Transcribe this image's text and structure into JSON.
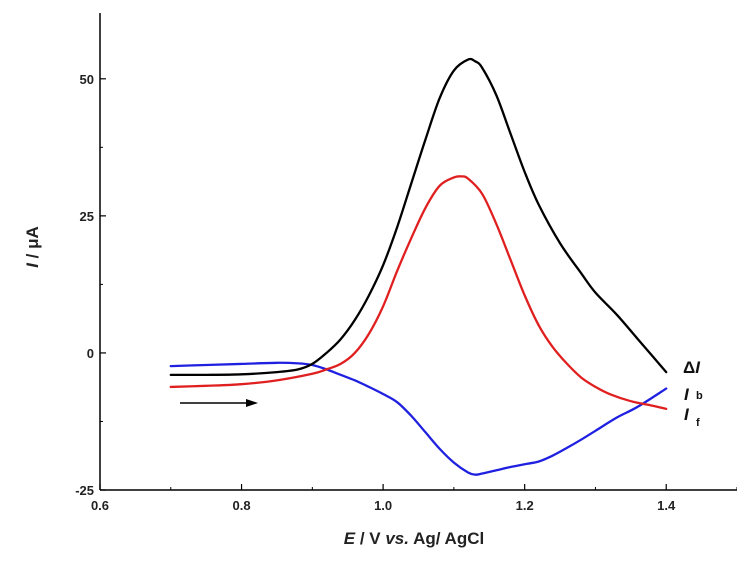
{
  "chart_data": {
    "type": "line",
    "xlabel": {
      "italic": "E",
      "rest1": " / V ",
      "italic2": "vs.",
      "rest2": " Ag/ AgCl"
    },
    "ylabel": {
      "italic": "I",
      "rest": " / μA"
    },
    "xlim": [
      0.6,
      1.5
    ],
    "ylim": [
      -25,
      62
    ],
    "x_ticks": [
      "0.6",
      "0.8",
      "1.0",
      "1.2",
      "1.4"
    ],
    "y_ticks": [
      "-25",
      "0",
      "25",
      "50"
    ],
    "grid": false,
    "scan_direction": "forward (increasing E)",
    "series": [
      {
        "label": {
          "symbol": "Δ",
          "main": "I",
          "sub": ""
        },
        "color": "#000000",
        "x": [
          0.7,
          0.75,
          0.8,
          0.85,
          0.88,
          0.9,
          0.92,
          0.94,
          0.96,
          0.98,
          1.0,
          1.02,
          1.04,
          1.06,
          1.08,
          1.1,
          1.12,
          1.13,
          1.14,
          1.16,
          1.18,
          1.2,
          1.22,
          1.25,
          1.28,
          1.3,
          1.33,
          1.36,
          1.38,
          1.4
        ],
        "y": [
          -4.0,
          -4.0,
          -3.9,
          -3.5,
          -3.0,
          -2.0,
          0.0,
          2.5,
          6.0,
          10.5,
          16.0,
          23.0,
          31.0,
          39.0,
          46.5,
          51.5,
          53.5,
          53.2,
          52.0,
          47.0,
          40.0,
          33.0,
          27.0,
          20.0,
          14.5,
          11.0,
          7.0,
          2.5,
          -0.5,
          -3.5
        ]
      },
      {
        "label": {
          "symbol": "",
          "main": "I",
          "sub": "b"
        },
        "color": "#e02020",
        "x": [
          0.7,
          0.75,
          0.8,
          0.85,
          0.9,
          0.92,
          0.94,
          0.96,
          0.98,
          1.0,
          1.02,
          1.04,
          1.06,
          1.08,
          1.1,
          1.11,
          1.12,
          1.14,
          1.16,
          1.18,
          1.2,
          1.22,
          1.24,
          1.26,
          1.28,
          1.3,
          1.32,
          1.35,
          1.38,
          1.4
        ],
        "y": [
          -6.2,
          -6.0,
          -5.7,
          -5.0,
          -3.8,
          -3.0,
          -2.0,
          0.0,
          3.5,
          8.5,
          15.0,
          21.0,
          26.5,
          30.5,
          32.0,
          32.2,
          31.8,
          29.0,
          23.5,
          17.0,
          10.5,
          5.0,
          1.0,
          -2.0,
          -4.5,
          -6.2,
          -7.5,
          -8.8,
          -9.6,
          -10.2
        ]
      },
      {
        "label": {
          "symbol": "",
          "main": "I",
          "sub": "f"
        },
        "color": "#2020e0",
        "x": [
          0.7,
          0.75,
          0.8,
          0.85,
          0.88,
          0.9,
          0.92,
          0.94,
          0.96,
          0.98,
          1.0,
          1.02,
          1.04,
          1.06,
          1.08,
          1.1,
          1.12,
          1.13,
          1.14,
          1.16,
          1.18,
          1.2,
          1.22,
          1.24,
          1.26,
          1.28,
          1.3,
          1.33,
          1.36,
          1.4
        ],
        "y": [
          -2.4,
          -2.2,
          -2.0,
          -1.8,
          -1.9,
          -2.2,
          -3.0,
          -4.0,
          -5.0,
          -6.2,
          -7.5,
          -9.0,
          -11.5,
          -14.5,
          -17.5,
          -20.0,
          -21.8,
          -22.2,
          -22.0,
          -21.4,
          -20.8,
          -20.3,
          -19.8,
          -18.7,
          -17.3,
          -15.8,
          -14.2,
          -11.8,
          -9.8,
          -6.5
        ]
      }
    ]
  }
}
